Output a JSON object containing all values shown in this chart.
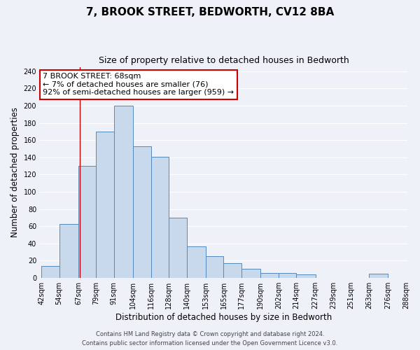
{
  "title": "7, BROOK STREET, BEDWORTH, CV12 8BA",
  "subtitle": "Size of property relative to detached houses in Bedworth",
  "xlabel": "Distribution of detached houses by size in Bedworth",
  "ylabel": "Number of detached properties",
  "bin_edges": [
    42,
    54,
    67,
    79,
    91,
    104,
    116,
    128,
    140,
    153,
    165,
    177,
    190,
    202,
    214,
    227,
    239,
    251,
    263,
    276,
    288
  ],
  "bar_heights": [
    14,
    63,
    130,
    170,
    200,
    153,
    141,
    70,
    37,
    25,
    17,
    11,
    6,
    6,
    4,
    0,
    0,
    0,
    5,
    0
  ],
  "bar_color": "#c9d9ec",
  "bar_edge_color": "#5588bb",
  "property_value": 68,
  "red_line_color": "#cc0000",
  "annotation_text": "7 BROOK STREET: 68sqm\n← 7% of detached houses are smaller (76)\n92% of semi-detached houses are larger (959) →",
  "annotation_box_color": "#ffffff",
  "annotation_box_edge_color": "#cc0000",
  "ylim": [
    0,
    245
  ],
  "yticks": [
    0,
    20,
    40,
    60,
    80,
    100,
    120,
    140,
    160,
    180,
    200,
    220,
    240
  ],
  "footer_line1": "Contains HM Land Registry data © Crown copyright and database right 2024.",
  "footer_line2": "Contains public sector information licensed under the Open Government Licence v3.0.",
  "bg_color": "#eef2f8",
  "grid_color": "#ffffff",
  "title_fontsize": 11,
  "subtitle_fontsize": 9,
  "label_fontsize": 8.5,
  "tick_fontsize": 7,
  "footer_fontsize": 6,
  "annotation_fontsize": 8
}
